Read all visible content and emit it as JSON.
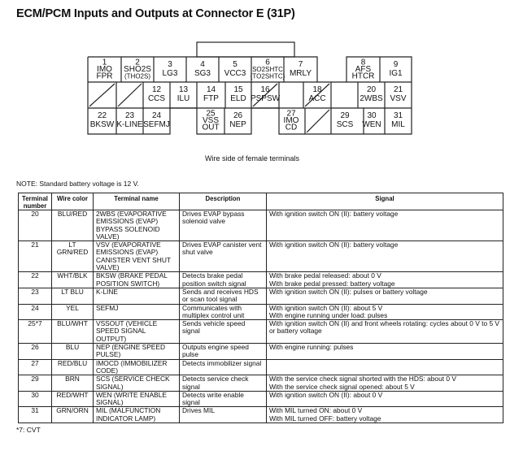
{
  "title": "ECM/PCM Inputs and Outputs at Connector E (31P)",
  "connector": {
    "caption": "Wire side of female terminals",
    "row1": [
      {
        "num": "1",
        "name": [
          "IMO",
          "FPR"
        ]
      },
      {
        "num": "2",
        "name": [
          "SHO2S",
          "(THO2S)"
        ]
      },
      {
        "num": "3",
        "name": [
          "LG3"
        ]
      },
      {
        "num": "4",
        "name": [
          "SG3"
        ]
      },
      {
        "num": "5",
        "name": [
          "VCC3"
        ]
      },
      {
        "num": "6",
        "name": [
          "SO2SHTC",
          "(TO2SHTC)"
        ]
      },
      {
        "num": "7",
        "name": [
          "MRLY"
        ]
      },
      {
        "num": "8",
        "name": [
          "AFS",
          "HTCR"
        ]
      },
      {
        "num": "9",
        "name": [
          "IG1"
        ]
      }
    ],
    "row2": [
      {
        "num": "12",
        "name": [
          "CCS"
        ]
      },
      {
        "num": "13",
        "name": [
          "ILU"
        ]
      },
      {
        "num": "14",
        "name": [
          "FTP"
        ]
      },
      {
        "num": "15",
        "name": [
          "ELD"
        ]
      },
      {
        "num": "16",
        "name": [
          "PSPSW"
        ]
      },
      {
        "num": "18",
        "name": [
          "ACC"
        ]
      },
      {
        "num": "20",
        "name": [
          "2WBS"
        ]
      },
      {
        "num": "21",
        "name": [
          "VSV"
        ]
      }
    ],
    "row3": [
      {
        "num": "22",
        "name": [
          "BKSW"
        ]
      },
      {
        "num": "23",
        "name": [
          "K-LINE"
        ]
      },
      {
        "num": "24",
        "name": [
          "SEFMJ"
        ]
      },
      {
        "num": "25",
        "name": [
          "VSS",
          "OUT"
        ]
      },
      {
        "num": "26",
        "name": [
          "NEP"
        ]
      },
      {
        "num": "27",
        "name": [
          "IMO",
          "CD"
        ]
      },
      {
        "num": "29",
        "name": [
          "SCS"
        ]
      },
      {
        "num": "30",
        "name": [
          "WEN"
        ]
      },
      {
        "num": "31",
        "name": [
          "MIL"
        ]
      }
    ]
  },
  "note": "NOTE: Standard battery voltage is 12 V.",
  "table": {
    "headers": [
      "Terminal number",
      "Wire color",
      "Terminal name",
      "Description",
      "Signal"
    ],
    "rows": [
      {
        "num": "20",
        "wire": "BLU/RED",
        "name": "2WBS (EVAPORATIVE EMISSIONS (EVAP) BYPASS SOLENOID VALVE)",
        "desc": "Drives EVAP bypass solenoid valve",
        "signal": "With ignition switch ON (II): battery voltage"
      },
      {
        "num": "21",
        "wire": "LT GRN/RED",
        "name": "VSV (EVAPORATIVE EMISSIONS (EVAP) CANISTER VENT SHUT VALVE)",
        "desc": "Drives EVAP canister vent shut valve",
        "signal": "With ignition switch ON (II): battery voltage"
      },
      {
        "num": "22",
        "wire": "WHT/BLK",
        "name": "BKSW (BRAKE PEDAL POSITION SWITCH)",
        "desc": "Detects brake pedal position switch signal",
        "signal": "With brake pedal released: about 0 V\nWith brake pedal pressed: battery voltage"
      },
      {
        "num": "23",
        "wire": "LT BLU",
        "name": "K-LINE",
        "desc": "Sends and receives HDS or scan tool signal",
        "signal": "With ignition switch ON (II): pulses or battery voltage"
      },
      {
        "num": "24",
        "wire": "YEL",
        "name": "SEFMJ",
        "desc": "Communicates with multiplex control unit",
        "signal": "With ignition switch ON (II): about 5 V\nWith engine running under load: pulses"
      },
      {
        "num": "25*7",
        "wire": "BLU/WHT",
        "name": "VSSOUT (VEHICLE SPEED SIGNAL OUTPUT)",
        "desc": "Sends vehicle speed signal",
        "signal": "With ignition switch ON (II) and front wheels rotating: cycles about 0 V to 5 V or battery voltage"
      },
      {
        "num": "26",
        "wire": "BLU",
        "name": "NEP (ENGINE SPEED PULSE)",
        "desc": "Outputs engine speed pulse",
        "signal": "With engine running: pulses"
      },
      {
        "num": "27",
        "wire": "RED/BLU",
        "name": "IMOCD (IMMOBILIZER CODE)",
        "desc": "Detects immobilizer signal",
        "signal": ""
      },
      {
        "num": "29",
        "wire": "BRN",
        "name": "SCS (SERVICE CHECK SIGNAL)",
        "desc": "Detects service check signal",
        "signal": "With the service check signal shorted with the HDS: about 0 V\nWith the service check signal opened: about 5 V"
      },
      {
        "num": "30",
        "wire": "RED/WHT",
        "name": "WEN (WRITE ENABLE SIGNAL)",
        "desc": "Detects write enable signal",
        "signal": "With ignition switch ON (II): about 0 V"
      },
      {
        "num": "31",
        "wire": "GRN/ORN",
        "name": "MIL (MALFUNCTION INDICATOR LAMP)",
        "desc": "Drives MIL",
        "signal": "With MIL turned ON: about 0 V\nWith MIL turned OFF: battery voltage"
      }
    ]
  },
  "footnote": "*7: CVT"
}
